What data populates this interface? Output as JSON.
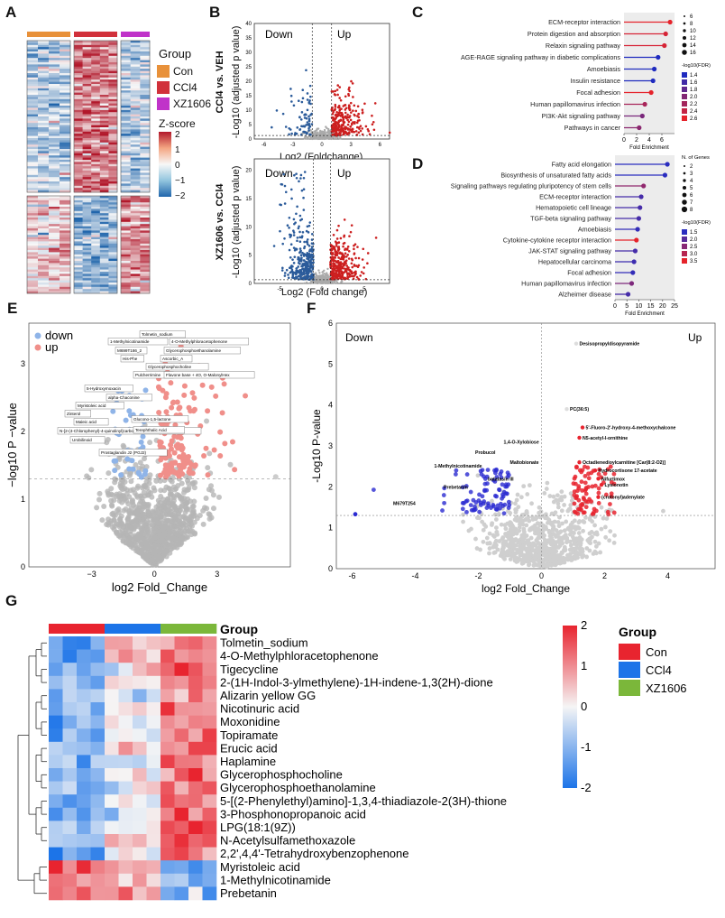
{
  "figure": {
    "panel_labels": [
      "A",
      "B",
      "C",
      "D",
      "E",
      "F",
      "G"
    ]
  },
  "panel_a": {
    "legend_title": "Group",
    "groups": [
      "Con",
      "CCl4",
      "XZ1606"
    ],
    "group_colors": [
      "#e8913a",
      "#d1313b",
      "#c033c9"
    ],
    "zscore_title": "Z-score",
    "zscore_ticks": [
      "2",
      "1",
      "0",
      "−1",
      "−2"
    ],
    "colors": {
      "high": "#b2182b",
      "mid": "#f7f7f7",
      "low": "#2166ac"
    }
  },
  "panel_b": {
    "top": {
      "title": "CCl4 vs. VEH",
      "ylabel": "-Log10 (adjusted p value)",
      "xlabel": "Log2 (Foldchange)",
      "down_label": "Down",
      "up_label": "Up",
      "y_ticks": [
        "40",
        "35",
        "30",
        "25",
        "20",
        "15",
        "10",
        "5",
        "0"
      ],
      "x_ticks": [
        "-6",
        "-3",
        "0",
        "3",
        "6"
      ]
    },
    "bottom": {
      "title": "XZ1606 vs. CCl4",
      "ylabel": "-Log10 (adjusted p value)",
      "xlabel": "Log2 (Fold change)",
      "down_label": "Down",
      "up_label": "Up",
      "y_ticks": [
        "20",
        "15",
        "10",
        "5",
        "0"
      ],
      "x_ticks": [
        "-5",
        "0",
        "5"
      ]
    },
    "colors": {
      "down": "#2b5b9a",
      "up": "#cc1f1f",
      "ns": "#aaaaaa"
    }
  },
  "panel_c": {
    "chart_data": {
      "type": "lollipop",
      "title": "",
      "xlabel": "Fold Enrichment",
      "x_ticks": [
        "0",
        "2",
        "4",
        "6"
      ],
      "xlim": [
        0,
        8
      ],
      "categories": [
        "ECM-receptor interaction",
        "Protein digestion and absorption",
        "Relaxin signaling pathway",
        "AGE-RAGE signaling pathway in diabetic complications",
        "Amoebiasis",
        "Insulin resistance",
        "Focal adhesion",
        "Human papillomavirus infection",
        "PI3K-Akt signaling pathway",
        "Pathways in cancer"
      ],
      "values": [
        7.3,
        6.6,
        6.4,
        5.4,
        4.8,
        4.6,
        4.3,
        3.3,
        2.9,
        2.4
      ],
      "fdr": [
        2.6,
        2.5,
        2.5,
        1.3,
        1.3,
        1.3,
        2.6,
        2.2,
        1.9,
        2.0
      ],
      "size_legend_title": "",
      "size_legend": [
        "6",
        "8",
        "10",
        "12",
        "14",
        "16"
      ],
      "color_legend_title": "-log10(FDR)",
      "color_legend": [
        "1.4",
        "1.6",
        "1.8",
        "2.0",
        "2.2",
        "2.4",
        "2.6"
      ]
    }
  },
  "panel_d": {
    "chart_data": {
      "type": "lollipop",
      "xlabel": "Fold Enrichment",
      "x_ticks": [
        "0",
        "5",
        "10",
        "15",
        "20",
        "25"
      ],
      "xlim": [
        0,
        25
      ],
      "categories": [
        "Fatty acid elongation",
        "Biosynthesis of unsaturated fatty acids",
        "Signaling pathways regulating pluripotency of stem cells",
        "ECM-receptor interaction",
        "Hematopoietic cell lineage",
        "TGF-beta signaling pathway",
        "Amoebiasis",
        "Cytokine-cytokine receptor interaction",
        "JAK-STAT signaling pathway",
        "Hepatocellular carcinoma",
        "Focal adhesion",
        "Human papillomavirus infection",
        "Alzheimer disease"
      ],
      "values": [
        22,
        21,
        12,
        11,
        10.5,
        10,
        9.5,
        9,
        8.5,
        8,
        7.5,
        7,
        5.5
      ],
      "fdr": [
        1.5,
        1.5,
        2.6,
        1.8,
        1.8,
        1.8,
        1.6,
        3.5,
        1.8,
        1.7,
        1.6,
        2.4,
        1.8
      ],
      "size_legend_title": "N. of Genes",
      "size_legend": [
        "2",
        "3",
        "4",
        "5",
        "6",
        "7",
        "8"
      ],
      "color_legend_title": "-log10(FDR)",
      "color_legend": [
        "1.5",
        "2.0",
        "2.5",
        "3.0",
        "3.5"
      ]
    }
  },
  "panel_e": {
    "legend": [
      "down",
      "up"
    ],
    "ylabel": "−log10 P −value",
    "xlabel": "log2 Fold_Change",
    "x_ticks": [
      "−3",
      "0",
      "3"
    ],
    "y_ticks": [
      "3",
      "2",
      "1",
      "0"
    ],
    "labels": [
      "Tolmetin_sodium",
      "1-Methylnicotinamide",
      "4-O-Methylphloracetophenone",
      "M699T186_2",
      "Glycerophosphoethanolamine",
      "His-Phe",
      "Ascorbic_A",
      "Glycerophosphocholine",
      "Pulcherrimine",
      "Flavone base + 4O, O-MalonylHex",
      "5-Hydroxymoxacin",
      "alpha-Chaconine",
      "Myristoleic acid",
      "Zinterol",
      "Glucono-1,5-lactone",
      "Maleic acid",
      "N-[2-(4-Chlorophenyl)-4-quinolinyl]carbonylglycine",
      "Terephthalic Acid",
      "Urobilinoid",
      "Prostaglandin J2 (PGJ2)"
    ]
  },
  "panel_f": {
    "down_label": "Down",
    "up_label": "Up",
    "ylabel": "-Log10 P-value",
    "xlabel": "log2 Fold_Change",
    "x_ticks": [
      "-6",
      "-4",
      "-2",
      "0",
      "2",
      "4"
    ],
    "y_ticks": [
      "0",
      "1",
      "2",
      "3",
      "4",
      "5",
      "6"
    ],
    "labels_right": [
      "Desisopropyldisopyramide",
      "PC(36:5)",
      "5'-Fluoro-2'-hydroxy-4-methoxychalcone",
      "N5-acetyl-l-ornithine",
      "Octadienedioylcarnitine [Car(8:2-O2)]",
      "Hydrocortisone 17-acetate",
      "Nifurtimox",
      "Lysionotin",
      "(crotonyl)adenylate"
    ],
    "labels_left": [
      "1,4-O-Xylobiose",
      "Probucol",
      "Maltobionate",
      "1-Methylnicotinamide",
      "batatasin III",
      "Prebetanin",
      "M679T254"
    ]
  },
  "panel_g": {
    "group_title": "Group",
    "legend_title": "Group",
    "groups": [
      "Con",
      "CCl4",
      "XZ1606"
    ],
    "group_colors": [
      "#e8242f",
      "#1c74e8",
      "#7bb73a"
    ],
    "scale_ticks": [
      "2",
      "1",
      "0",
      "-1",
      "-2"
    ],
    "rows": [
      "Tolmetin_sodium",
      "4-O-Methylphloracetophenone",
      "Tigecycline",
      "2-(1H-Indol-3-ylmethylene)-1H-indene-1,3(2H)-dione",
      "Alizarin yellow GG",
      "Nicotinuric acid",
      "Moxonidine",
      "Topiramate",
      "Erucic acid",
      "Haplamine",
      "Glycerophosphocholine",
      "Glycerophosphoethanolamine",
      "5-[(2-Phenylethyl)amino]-1,3,4-thiadiazole-2(3H)-thione",
      "3-Phosphonopropanoic acid",
      "LPG(18:1(9Z))",
      "N-Acetylsulfamethoxazole",
      "2,2',4,4'-Tetrahydroxybenzophenone",
      "Myristoleic acid",
      "1-Methylnicotinamide",
      "Prebetanin"
    ],
    "colors": {
      "high": "#e8242f",
      "mid": "#f5f5f5",
      "low": "#1c74e8"
    }
  }
}
